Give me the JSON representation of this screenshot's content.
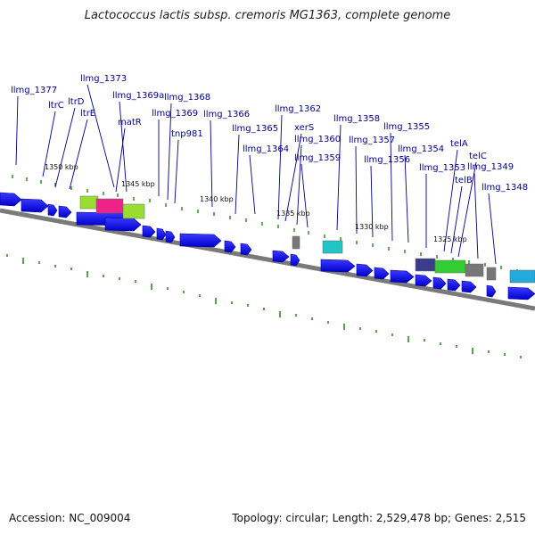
{
  "title": "Lactococcus lactis subsp. cremoris MG1363, complete genome",
  "footer": {
    "accession": "Accession: NC_009004",
    "summary": "Topology: circular; Length: 2,529,478 bp; Genes: 2,515"
  },
  "scale_labels": [
    "1350 kbp",
    "1345 kbp",
    "1340 kbp",
    "1335 kbp",
    "1330 kbp",
    "1325 kbp"
  ],
  "gene_labels": [
    "llmg_1377",
    "ltrC",
    "ltrD",
    "ltrE",
    "llmg_1373",
    "matR",
    "llmg_1369a",
    "llmg_1369",
    "llmg_1368",
    "tnp981",
    "llmg_1366",
    "llmg_1365",
    "llmg_1364",
    "llmg_1362",
    "xerS",
    "llmg_1360",
    "llmg_1359",
    "llmg_1358",
    "llmg_1357",
    "llmg_1356",
    "llmg_1355",
    "llmg_1354",
    "llmg_1353",
    "telA",
    "telB",
    "telC",
    "llmg_1349",
    "llmg_1348"
  ],
  "colors": {
    "cds": "#0000ee",
    "leader": "#00008b",
    "tick": "#2e8b22",
    "backbone": "#7a7a7a"
  }
}
